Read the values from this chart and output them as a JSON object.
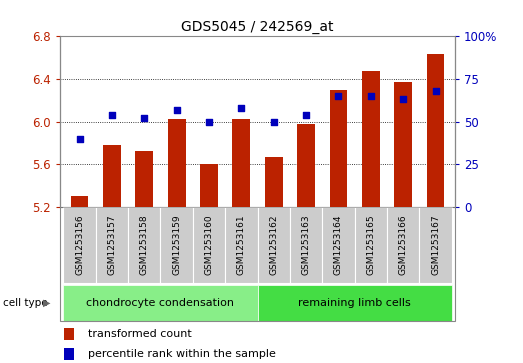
{
  "title": "GDS5045 / 242569_at",
  "samples": [
    "GSM1253156",
    "GSM1253157",
    "GSM1253158",
    "GSM1253159",
    "GSM1253160",
    "GSM1253161",
    "GSM1253162",
    "GSM1253163",
    "GSM1253164",
    "GSM1253165",
    "GSM1253166",
    "GSM1253167"
  ],
  "bar_values": [
    5.3,
    5.78,
    5.72,
    6.02,
    5.6,
    6.02,
    5.67,
    5.98,
    6.3,
    6.47,
    6.37,
    6.63
  ],
  "percentile_values": [
    40,
    54,
    52,
    57,
    50,
    58,
    50,
    54,
    65,
    65,
    63,
    68
  ],
  "ylim_left": [
    5.2,
    6.8
  ],
  "ylim_right": [
    0,
    100
  ],
  "yticks_left": [
    5.2,
    5.6,
    6.0,
    6.4,
    6.8
  ],
  "yticks_right": [
    0,
    25,
    50,
    75,
    100
  ],
  "bar_color": "#BB2200",
  "dot_color": "#0000BB",
  "bar_bottom": 5.2,
  "cell_types": [
    {
      "label": "chondrocyte condensation",
      "start": 0,
      "end": 6,
      "color": "#88EE88"
    },
    {
      "label": "remaining limb cells",
      "start": 6,
      "end": 12,
      "color": "#44DD44"
    }
  ],
  "legend_bar_label": "transformed count",
  "legend_dot_label": "percentile rank within the sample",
  "cell_type_label": "cell type"
}
